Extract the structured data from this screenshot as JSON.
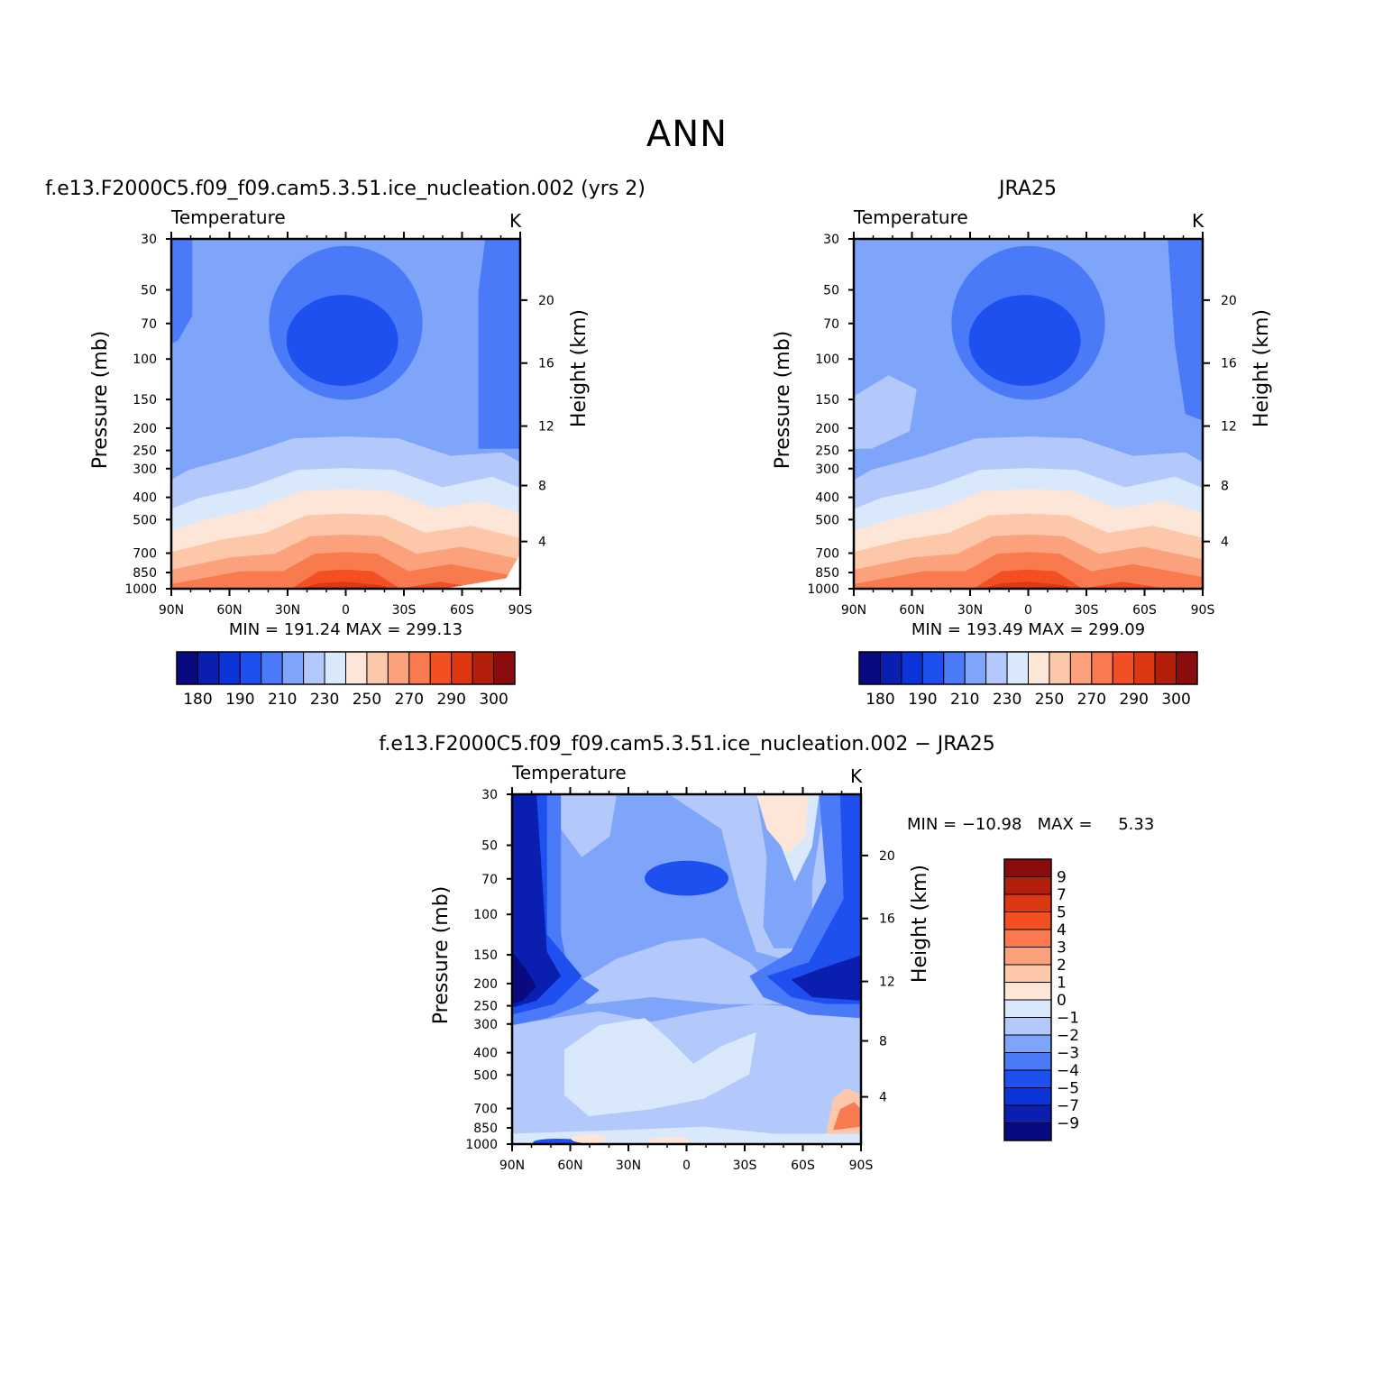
{
  "page_title": "ANN",
  "chart_data": [
    {
      "type": "contour",
      "id": "model",
      "title": "f.e13.F2000C5.f09_f09.cam5.3.51.ice_nucleation.002 (yrs 2)",
      "left_label": "Temperature",
      "right_label": "K",
      "ylabel": "Pressure (mb)",
      "ylabel_right": "Height (km)",
      "x_ticks": [
        "90N",
        "60N",
        "30N",
        "0",
        "30S",
        "60S",
        "90S"
      ],
      "y_ticks": [
        "30",
        "50",
        "70",
        "100",
        "150",
        "200",
        "250",
        "300",
        "400",
        "500",
        "700",
        "850",
        "1000"
      ],
      "y_right_ticks": [
        "20",
        "16",
        "12",
        "8",
        "4"
      ],
      "stats": "MIN = 191.24 MAX = 299.13",
      "min": 191.24,
      "max": 299.13,
      "colorbar_labels": [
        "180",
        "190",
        "210",
        "230",
        "250",
        "270",
        "290",
        "300"
      ]
    },
    {
      "type": "contour",
      "id": "obs",
      "title": "JRA25",
      "left_label": "Temperature",
      "right_label": "K",
      "ylabel": "Pressure (mb)",
      "ylabel_right": "Height (km)",
      "x_ticks": [
        "90N",
        "60N",
        "30N",
        "0",
        "30S",
        "60S",
        "90S"
      ],
      "y_ticks": [
        "30",
        "50",
        "70",
        "100",
        "150",
        "200",
        "250",
        "300",
        "400",
        "500",
        "700",
        "850",
        "1000"
      ],
      "y_right_ticks": [
        "20",
        "16",
        "12",
        "8",
        "4"
      ],
      "stats": "MIN = 193.49 MAX = 299.09",
      "min": 193.49,
      "max": 299.09,
      "colorbar_labels": [
        "180",
        "190",
        "210",
        "230",
        "250",
        "270",
        "290",
        "300"
      ]
    },
    {
      "type": "contour",
      "id": "diff",
      "title": "f.e13.F2000C5.f09_f09.cam5.3.51.ice_nucleation.002 − JRA25",
      "left_label": "Temperature",
      "right_label": "K",
      "ylabel": "Pressure (mb)",
      "ylabel_right": "Height (km)",
      "x_ticks": [
        "90N",
        "60N",
        "30N",
        "0",
        "30S",
        "60S",
        "90S"
      ],
      "y_ticks": [
        "30",
        "50",
        "70",
        "100",
        "150",
        "200",
        "250",
        "300",
        "400",
        "500",
        "700",
        "850",
        "1000"
      ],
      "y_right_ticks": [
        "20",
        "16",
        "12",
        "8",
        "4"
      ],
      "stats": "MIN = −10.98   MAX =     5.33",
      "min": -10.98,
      "max": 5.33,
      "colorbar_labels": [
        "9",
        "7",
        "5",
        "4",
        "3",
        "2",
        "1",
        "0",
        "−1",
        "−2",
        "−3",
        "−4",
        "−5",
        "−7",
        "−9"
      ]
    }
  ],
  "colors": {
    "temp_palette": [
      "#0a0a80",
      "#0a1fb0",
      "#0b34d8",
      "#1e50f0",
      "#4a7af8",
      "#7ea5fa",
      "#b3c9fb",
      "#d9e8fb",
      "#fde6d8",
      "#fdc8aa",
      "#fba27d",
      "#f97a4f",
      "#f25022",
      "#dd3812",
      "#b31f0b",
      "#8a0c0c"
    ],
    "diff_palette": [
      "#8a0c0c",
      "#b31f0b",
      "#dd3812",
      "#f25022",
      "#f97a4f",
      "#fba27d",
      "#fdc8aa",
      "#fde6d8",
      "#d9e8fb",
      "#b3c9fb",
      "#7ea5fa",
      "#4a7af8",
      "#1e50f0",
      "#0b34d8",
      "#0a1fb0",
      "#0a0a80"
    ]
  }
}
